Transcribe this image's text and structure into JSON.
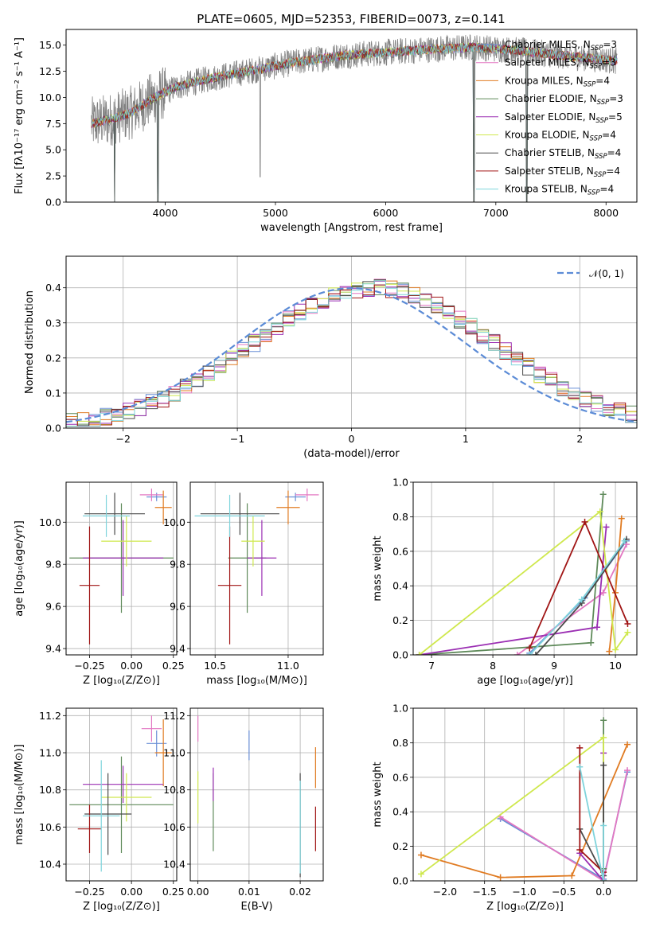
{
  "figure_title": "PLATE=0605, MJD=52353, FIBERID=0073, z=0.141",
  "colors": {
    "Chabrier MILES": "#6a8fd6",
    "Salpeter MILES": "#e377c2",
    "Kroupa MILES": "#e07b22",
    "Chabrier ELODIE": "#5f8a5a",
    "Salpeter ELODIE": "#9b2fb3",
    "Kroupa ELODIE": "#cfe84d",
    "Chabrier STELIB": "#4a4a4a",
    "Salpeter STELIB": "#a01515",
    "Kroupa STELIB": "#7fd4dc",
    "data": "#808080",
    "normal": "#5b8bd6"
  },
  "legend_spectrum": [
    {
      "model": "Chabrier MILES",
      "pre": "Chabrier MILES, N",
      "n": "3"
    },
    {
      "model": "Salpeter MILES",
      "pre": "Salpeter MILES, N",
      "n": "3"
    },
    {
      "model": "Kroupa MILES",
      "pre": "Kroupa MILES, N",
      "n": "4"
    },
    {
      "model": "Chabrier ELODIE",
      "pre": "Chabrier ELODIE, N",
      "n": "3"
    },
    {
      "model": "Salpeter ELODIE",
      "pre": "Salpeter ELODIE, N",
      "n": "5"
    },
    {
      "model": "Kroupa ELODIE",
      "pre": "Kroupa ELODIE, N",
      "n": "4"
    },
    {
      "model": "Chabrier STELIB",
      "pre": "Chabrier STELIB, N",
      "n": "4"
    },
    {
      "model": "Salpeter STELIB",
      "pre": "Salpeter STELIB, N",
      "n": "4"
    },
    {
      "model": "Kroupa STELIB",
      "pre": "Kroupa STELIB, N",
      "n": "4"
    }
  ],
  "legend_sub": "SSP",
  "chart_data": [
    {
      "id": "spectrum",
      "type": "line",
      "title": "PLATE=0605, MJD=52353, FIBERID=0073, z=0.141",
      "xlabel": "wavelength [Angstrom, rest frame]",
      "ylabel": "Flux [fλ10⁻¹⁷ erg cm⁻² s⁻¹ A⁻¹]",
      "xlim": [
        3100,
        8280
      ],
      "ylim": [
        0,
        16.5
      ],
      "xticks": [
        4000,
        5000,
        6000,
        7000,
        8000
      ],
      "yticks": [
        0.0,
        2.5,
        5.0,
        7.5,
        10.0,
        12.5,
        15.0
      ],
      "continuum": [
        [
          3330,
          7.5
        ],
        [
          3500,
          7.9
        ],
        [
          3700,
          8.6
        ],
        [
          3900,
          10.0
        ],
        [
          4100,
          11.0
        ],
        [
          4400,
          11.8
        ],
        [
          4800,
          12.6
        ],
        [
          5200,
          13.4
        ],
        [
          5600,
          14.0
        ],
        [
          6000,
          14.3
        ],
        [
          6400,
          14.6
        ],
        [
          6800,
          14.8
        ],
        [
          7200,
          14.5
        ],
        [
          7600,
          14.0
        ],
        [
          8100,
          13.5
        ]
      ],
      "dips": [
        [
          3540,
          0
        ],
        [
          3935,
          0
        ],
        [
          4862,
          2.4
        ],
        [
          6800,
          0
        ],
        [
          7280,
          0
        ]
      ],
      "legend_loc": "upper right"
    },
    {
      "id": "residuals",
      "type": "histogram",
      "xlabel": "(data-model)/error",
      "ylabel": "Normed distribution",
      "xlim": [
        -2.5,
        2.5
      ],
      "ylim": [
        0,
        0.49
      ],
      "xticks": [
        -2,
        -1,
        0,
        1,
        2
      ],
      "yticks": [
        0.0,
        0.1,
        0.2,
        0.3,
        0.4
      ],
      "bin_width": 0.1,
      "center": 0.2,
      "peak": 0.4,
      "curve_label": "𝒩(0, 1)",
      "legend_loc": "upper right"
    },
    {
      "id": "age-vs-Z",
      "type": "scatter",
      "xlabel": "Z [log₁₀(Z/Z⊙)]",
      "ylabel": "age  [log₁₀(age/yr)]",
      "xlim": [
        -0.39,
        0.27
      ],
      "ylim": [
        9.37,
        10.19
      ],
      "xticks": [
        -0.25,
        0.0,
        0.25
      ],
      "xticklabels": [
        "−0.25",
        "0.00",
        "0.25"
      ],
      "yticks": [
        9.4,
        9.6,
        9.8,
        10.0
      ],
      "yticklabels": [
        "9.4",
        "9.6",
        "9.8",
        "10.0"
      ],
      "points": [
        {
          "model": "Chabrier MILES",
          "x": 0.15,
          "xe": 0.06,
          "y": 10.12,
          "ye": 0.02
        },
        {
          "model": "Salpeter MILES",
          "x": 0.12,
          "xe": 0.07,
          "y": 10.13,
          "ye": 0.03
        },
        {
          "model": "Kroupa MILES",
          "x": 0.19,
          "xe": 0.05,
          "y": 10.07,
          "ye": 0.08
        },
        {
          "model": "Chabrier ELODIE",
          "x": -0.06,
          "xe": 0.31,
          "y": 9.83,
          "ye": 0.26
        },
        {
          "model": "Salpeter ELODIE",
          "x": -0.05,
          "xe": 0.24,
          "y": 9.83,
          "ye": 0.18
        },
        {
          "model": "Kroupa ELODIE",
          "x": -0.03,
          "xe": 0.15,
          "y": 9.91,
          "ye": 0.12
        },
        {
          "model": "Chabrier STELIB",
          "x": -0.1,
          "xe": 0.18,
          "y": 10.04,
          "ye": 0.1
        },
        {
          "model": "Salpeter STELIB",
          "x": -0.25,
          "xe": 0.06,
          "y": 9.7,
          "ye": 0.28
        },
        {
          "model": "Kroupa STELIB",
          "x": -0.15,
          "xe": 0.14,
          "y": 10.03,
          "ye": 0.1
        }
      ]
    },
    {
      "id": "age-vs-mass",
      "type": "scatter",
      "xlabel": "mass [log₁₀(M/M⊙)]",
      "ylabel": "",
      "xlim": [
        10.33,
        11.24
      ],
      "ylim": [
        9.37,
        10.19
      ],
      "xticks": [
        10.5,
        11.0
      ],
      "xticklabels": [
        "10.5",
        "11.0"
      ],
      "yticks": [
        9.4,
        9.6,
        9.8,
        10.0
      ],
      "yticklabels": [
        "9.4",
        "9.6",
        "9.8",
        "10.0"
      ],
      "points": [
        {
          "model": "Chabrier MILES",
          "x": 11.05,
          "xe": 0.07,
          "y": 10.12,
          "ye": 0.02
        },
        {
          "model": "Salpeter MILES",
          "x": 11.13,
          "xe": 0.08,
          "y": 10.13,
          "ye": 0.03
        },
        {
          "model": "Kroupa MILES",
          "x": 11.0,
          "xe": 0.08,
          "y": 10.07,
          "ye": 0.08
        },
        {
          "model": "Chabrier ELODIE",
          "x": 10.72,
          "xe": 0.13,
          "y": 9.83,
          "ye": 0.26
        },
        {
          "model": "Salpeter ELODIE",
          "x": 10.82,
          "xe": 0.1,
          "y": 9.83,
          "ye": 0.18
        },
        {
          "model": "Kroupa ELODIE",
          "x": 10.76,
          "xe": 0.08,
          "y": 9.91,
          "ye": 0.12
        },
        {
          "model": "Chabrier STELIB",
          "x": 10.67,
          "xe": 0.27,
          "y": 10.04,
          "ye": 0.1
        },
        {
          "model": "Salpeter STELIB",
          "x": 10.6,
          "xe": 0.08,
          "y": 9.7,
          "ye": 0.28
        },
        {
          "model": "Kroupa STELIB",
          "x": 10.6,
          "xe": 0.24,
          "y": 10.03,
          "ye": 0.1
        }
      ]
    },
    {
      "id": "weight-vs-age",
      "type": "line",
      "xlabel": "age  [log₁₀(age/yr)]",
      "ylabel": "mass weight",
      "xlim": [
        6.7,
        10.35
      ],
      "ylim": [
        0,
        1
      ],
      "xticks": [
        7,
        8,
        9,
        10
      ],
      "xticklabels": [
        "7",
        "8",
        "9",
        "10"
      ],
      "yticks": [
        0.0,
        0.2,
        0.4,
        0.6,
        0.8,
        1.0
      ],
      "yticklabels": [
        "0.0",
        "0.2",
        "0.4",
        "0.6",
        "0.8",
        "1.0"
      ],
      "series": [
        {
          "model": "Chabrier MILES",
          "x": [
            8.6,
            9.5,
            10.18
          ],
          "y": [
            0.01,
            0.33,
            0.66
          ]
        },
        {
          "model": "Salpeter MILES",
          "x": [
            8.4,
            9.8,
            10.18
          ],
          "y": [
            0.0,
            0.36,
            0.64
          ]
        },
        {
          "model": "Kroupa MILES",
          "x": [
            9.9,
            10.0,
            10.1
          ],
          "y": [
            0.02,
            0.36,
            0.79
          ]
        },
        {
          "model": "Chabrier ELODIE",
          "x": [
            6.8,
            9.6,
            9.8
          ],
          "y": [
            0.0,
            0.07,
            0.93
          ]
        },
        {
          "model": "Salpeter ELODIE",
          "x": [
            6.8,
            9.7,
            9.85
          ],
          "y": [
            0.0,
            0.16,
            0.74
          ]
        },
        {
          "model": "Kroupa ELODIE",
          "x": [
            6.8,
            9.75,
            10.0,
            10.2
          ],
          "y": [
            0.0,
            0.83,
            0.03,
            0.13
          ]
        },
        {
          "model": "Chabrier STELIB",
          "x": [
            8.7,
            9.45,
            10.18
          ],
          "y": [
            0.0,
            0.3,
            0.67
          ]
        },
        {
          "model": "Salpeter STELIB",
          "x": [
            8.6,
            9.5,
            10.2
          ],
          "y": [
            0.04,
            0.77,
            0.18
          ]
        },
        {
          "model": "Kroupa STELIB",
          "x": [
            8.6,
            9.45,
            10.15
          ],
          "y": [
            0.0,
            0.32,
            0.66
          ]
        }
      ]
    },
    {
      "id": "mass-vs-Z",
      "type": "scatter",
      "xlabel": "Z [log₁₀(Z/Z⊙)]",
      "ylabel": "mass [log₁₀(M/M⊙)]",
      "xlim": [
        -0.39,
        0.27
      ],
      "ylim": [
        10.31,
        11.24
      ],
      "xticks": [
        -0.25,
        0.0,
        0.25
      ],
      "xticklabels": [
        "−0.25",
        "0.00",
        "0.25"
      ],
      "yticks": [
        10.4,
        10.6,
        10.8,
        11.0,
        11.2
      ],
      "yticklabels": [
        "10.4",
        "10.6",
        "10.8",
        "11.0",
        "11.2"
      ],
      "points": [
        {
          "model": "Chabrier MILES",
          "x": 0.15,
          "xe": 0.06,
          "y": 11.05,
          "ye": 0.07
        },
        {
          "model": "Salpeter MILES",
          "x": 0.12,
          "xe": 0.06,
          "y": 11.13,
          "ye": 0.07
        },
        {
          "model": "Kroupa MILES",
          "x": 0.19,
          "xe": 0.05,
          "y": 11.0,
          "ye": 0.18
        },
        {
          "model": "Chabrier ELODIE",
          "x": -0.06,
          "xe": 0.31,
          "y": 10.72,
          "ye": 0.26
        },
        {
          "model": "Salpeter ELODIE",
          "x": -0.05,
          "xe": 0.24,
          "y": 10.83,
          "ye": 0.1
        },
        {
          "model": "Kroupa ELODIE",
          "x": -0.03,
          "xe": 0.15,
          "y": 10.76,
          "ye": 0.13
        },
        {
          "model": "Chabrier STELIB",
          "x": -0.14,
          "xe": 0.14,
          "y": 10.67,
          "ye": 0.22
        },
        {
          "model": "Salpeter STELIB",
          "x": -0.25,
          "xe": 0.07,
          "y": 10.59,
          "ye": 0.13
        },
        {
          "model": "Kroupa STELIB",
          "x": -0.18,
          "xe": 0.11,
          "y": 10.66,
          "ye": 0.3
        }
      ]
    },
    {
      "id": "mass-vs-EBV",
      "type": "scatter",
      "xlabel": "E(B-V)",
      "ylabel": "",
      "xlim": [
        -0.0015,
        0.0245
      ],
      "ylim": [
        10.31,
        11.24
      ],
      "xticks": [
        0.0,
        0.01,
        0.02
      ],
      "xticklabels": [
        "0.00",
        "0.01",
        "0.02"
      ],
      "yticks": [
        10.4,
        10.6,
        10.8,
        11.0,
        11.2
      ],
      "yticklabels": [
        "10.4",
        "10.6",
        "10.8",
        "11.0",
        "11.2"
      ],
      "points": [
        {
          "model": "Chabrier MILES",
          "x": 0.01,
          "y": 11.04,
          "ye": 0.08
        },
        {
          "model": "Salpeter MILES",
          "x": 0.0,
          "y": 11.13,
          "ye": 0.07
        },
        {
          "model": "Kroupa MILES",
          "x": 0.023,
          "y": 10.92,
          "ye": 0.11
        },
        {
          "model": "Chabrier ELODIE",
          "x": 0.003,
          "y": 10.68,
          "ye": 0.21
        },
        {
          "model": "Salpeter ELODIE",
          "x": 0.003,
          "y": 10.83,
          "ye": 0.09
        },
        {
          "model": "Kroupa ELODIE",
          "x": 0.0,
          "y": 10.76,
          "ye": 0.14
        },
        {
          "model": "Chabrier STELIB",
          "x": 0.02,
          "y": 10.61,
          "ye": 0.28
        },
        {
          "model": "Salpeter STELIB",
          "x": 0.023,
          "y": 10.59,
          "ye": 0.12
        },
        {
          "model": "Kroupa STELIB",
          "x": 0.02,
          "y": 10.6,
          "ye": 0.25
        }
      ]
    },
    {
      "id": "weight-vs-Z",
      "type": "line",
      "xlabel": "Z [log₁₀(Z/Z⊙)]",
      "ylabel": "mass weight",
      "xlim": [
        -2.4,
        0.42
      ],
      "ylim": [
        0,
        1
      ],
      "xticks": [
        -2.0,
        -1.5,
        -1.0,
        -0.5,
        0.0
      ],
      "xticklabels": [
        "−2.0",
        "−1.5",
        "−1.0",
        "−0.5",
        "0.0"
      ],
      "yticks": [
        0.0,
        0.2,
        0.4,
        0.6,
        0.8,
        1.0
      ],
      "yticklabels": [
        "0.0",
        "0.2",
        "0.4",
        "0.6",
        "0.8",
        "1.0"
      ],
      "series": [
        {
          "model": "Chabrier MILES",
          "x": [
            -1.3,
            0.0,
            0.3
          ],
          "y": [
            0.36,
            0.01,
            0.63
          ]
        },
        {
          "model": "Salpeter MILES",
          "x": [
            -1.3,
            0.0,
            0.3
          ],
          "y": [
            0.37,
            0.0,
            0.64
          ]
        },
        {
          "model": "Kroupa MILES",
          "x": [
            -2.3,
            -1.3,
            -0.4,
            0.3
          ],
          "y": [
            0.15,
            0.02,
            0.03,
            0.79
          ]
        },
        {
          "model": "Chabrier ELODIE",
          "x": [
            0.0,
            0.0
          ],
          "y": [
            0.07,
            0.93
          ]
        },
        {
          "model": "Salpeter ELODIE",
          "x": [
            -0.3,
            0.0,
            0.0
          ],
          "y": [
            0.16,
            0.0,
            0.74
          ]
        },
        {
          "model": "Kroupa ELODIE",
          "x": [
            -2.3,
            0.0,
            0.0
          ],
          "y": [
            0.04,
            0.83,
            0.0
          ]
        },
        {
          "model": "Chabrier STELIB",
          "x": [
            -0.3,
            0.0,
            0.0
          ],
          "y": [
            0.3,
            0.03,
            0.67
          ]
        },
        {
          "model": "Salpeter STELIB",
          "x": [
            -0.3,
            -0.3,
            0.0
          ],
          "y": [
            0.77,
            0.18,
            0.05
          ]
        },
        {
          "model": "Kroupa STELIB",
          "x": [
            -0.3,
            0.0,
            0.0
          ],
          "y": [
            0.66,
            0.0,
            0.32
          ]
        }
      ]
    }
  ]
}
